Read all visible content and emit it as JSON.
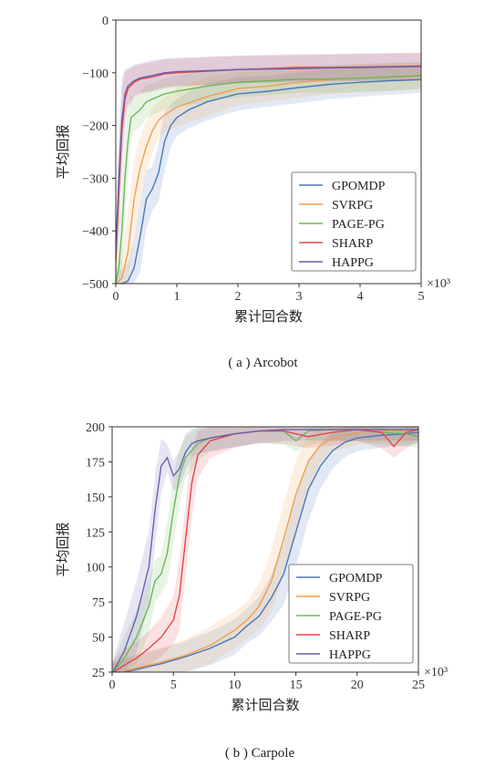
{
  "figure": {
    "colors": {
      "GPOMDP": "#4a78b8",
      "SVRPG": "#f0a04b",
      "PAGE-PG": "#6bb85a",
      "SHARP": "#e04848",
      "HAPPG": "#6a5fb0"
    }
  },
  "chart_data": [
    {
      "type": "line",
      "caption": "( a ) Arcobot",
      "xlabel": "累计回合数",
      "ylabel": "平均回报",
      "x_multiplier": "×10³",
      "xlim": [
        0,
        5
      ],
      "ylim": [
        -500,
        0
      ],
      "xticks": [
        0,
        1,
        2,
        3,
        4,
        5
      ],
      "yticks": [
        -500,
        -400,
        -300,
        -200,
        -100,
        0
      ],
      "legend_position": "lower-right",
      "series": [
        {
          "name": "GPOMDP",
          "x": [
            0,
            0.1,
            0.2,
            0.3,
            0.4,
            0.5,
            0.6,
            0.7,
            0.8,
            0.9,
            1.0,
            1.2,
            1.5,
            2.0,
            2.5,
            3.0,
            3.5,
            4.0,
            4.5,
            5.0
          ],
          "y": [
            -500,
            -500,
            -495,
            -470,
            -410,
            -340,
            -320,
            -290,
            -230,
            -200,
            -185,
            -170,
            -155,
            -140,
            -135,
            -128,
            -122,
            -118,
            -115,
            -113
          ]
        },
        {
          "name": "SVRPG",
          "x": [
            0,
            0.1,
            0.2,
            0.3,
            0.4,
            0.5,
            0.6,
            0.7,
            0.8,
            1.0,
            1.5,
            2.0,
            2.5,
            3.0,
            3.5,
            4.0,
            4.5,
            5.0
          ],
          "y": [
            -500,
            -490,
            -440,
            -340,
            -280,
            -240,
            -210,
            -190,
            -180,
            -165,
            -145,
            -130,
            -125,
            -118,
            -113,
            -110,
            -108,
            -106
          ]
        },
        {
          "name": "PAGE-PG",
          "x": [
            0,
            0.05,
            0.1,
            0.15,
            0.2,
            0.25,
            0.3,
            0.4,
            0.5,
            0.6,
            0.8,
            1.0,
            1.5,
            2.0,
            2.5,
            3.0,
            3.5,
            4.0,
            4.5,
            5.0
          ],
          "y": [
            -500,
            -470,
            -400,
            -300,
            -230,
            -185,
            -180,
            -170,
            -155,
            -150,
            -140,
            -135,
            -125,
            -118,
            -115,
            -112,
            -112,
            -110,
            -108,
            -105
          ]
        },
        {
          "name": "SHARP",
          "x": [
            0,
            0.05,
            0.1,
            0.15,
            0.2,
            0.3,
            0.4,
            0.6,
            0.8,
            1.0,
            1.5,
            2.0,
            2.5,
            3.0,
            3.5,
            4.0,
            4.5,
            5.0
          ],
          "y": [
            -460,
            -330,
            -210,
            -150,
            -130,
            -118,
            -112,
            -108,
            -102,
            -100,
            -97,
            -94,
            -92,
            -90,
            -90,
            -89,
            -88,
            -87
          ]
        },
        {
          "name": "HAPPG",
          "x": [
            0,
            0.05,
            0.1,
            0.15,
            0.2,
            0.3,
            0.4,
            0.6,
            0.8,
            1.0,
            1.5,
            2.0,
            2.5,
            3.0,
            3.5,
            4.0,
            4.5,
            5.0
          ],
          "y": [
            -440,
            -300,
            -190,
            -140,
            -125,
            -115,
            -110,
            -105,
            -100,
            -98,
            -96,
            -94,
            -93,
            -92,
            -91,
            -90,
            -89,
            -88
          ]
        }
      ]
    },
    {
      "type": "line",
      "caption": "( b ) Carpole",
      "xlabel": "累计回合数",
      "ylabel": "平均回报",
      "x_multiplier": "×10³",
      "xlim": [
        0,
        25
      ],
      "ylim": [
        25,
        200
      ],
      "xticks": [
        0,
        5,
        10,
        15,
        20,
        25
      ],
      "yticks": [
        25,
        50,
        75,
        100,
        125,
        150,
        175,
        200
      ],
      "legend_position": "lower-right",
      "series": [
        {
          "name": "GPOMDP",
          "x": [
            0,
            2,
            4,
            6,
            8,
            10,
            11,
            12,
            13,
            14,
            15,
            16,
            17,
            18,
            19,
            20,
            22,
            24,
            25
          ],
          "y": [
            23,
            27,
            31,
            36,
            42,
            50,
            58,
            65,
            78,
            95,
            125,
            155,
            172,
            183,
            189,
            192,
            194,
            195,
            196
          ]
        },
        {
          "name": "SVRPG",
          "x": [
            0,
            2,
            4,
            6,
            8,
            10,
            11,
            12,
            13,
            14,
            15,
            16,
            17,
            18,
            19,
            20,
            22,
            24,
            25
          ],
          "y": [
            24,
            28,
            32,
            37,
            44,
            55,
            62,
            72,
            90,
            120,
            152,
            175,
            187,
            192,
            194,
            196,
            197,
            197,
            198
          ]
        },
        {
          "name": "PAGE-PG",
          "x": [
            0,
            1,
            2,
            3,
            3.5,
            4,
            4.5,
            5,
            5.5,
            6,
            7,
            8,
            10,
            12,
            14,
            15,
            16,
            18,
            20,
            22,
            24,
            25
          ],
          "y": [
            24,
            35,
            50,
            72,
            90,
            95,
            110,
            140,
            165,
            178,
            188,
            192,
            195,
            197,
            197,
            190,
            197,
            198,
            198,
            196,
            195,
            193
          ]
        },
        {
          "name": "SHARP",
          "x": [
            0,
            1,
            2,
            3,
            4,
            5,
            5.5,
            6,
            6.5,
            7,
            8,
            10,
            12,
            14,
            16,
            18,
            20,
            22,
            23,
            24,
            25
          ],
          "y": [
            24,
            30,
            35,
            42,
            50,
            62,
            80,
            120,
            160,
            180,
            190,
            195,
            197,
            197,
            193,
            196,
            198,
            196,
            186,
            196,
            198
          ]
        },
        {
          "name": "HAPPG",
          "x": [
            0,
            1,
            2,
            3,
            3.5,
            4,
            4.5,
            5,
            5.5,
            6,
            6.5,
            7,
            8,
            10,
            12,
            14,
            16,
            18,
            20,
            22,
            24,
            25
          ],
          "y": [
            24,
            40,
            65,
            100,
            140,
            172,
            178,
            165,
            170,
            182,
            188,
            190,
            192,
            195,
            197,
            198,
            198,
            198,
            198,
            198,
            198,
            198
          ]
        }
      ]
    }
  ]
}
